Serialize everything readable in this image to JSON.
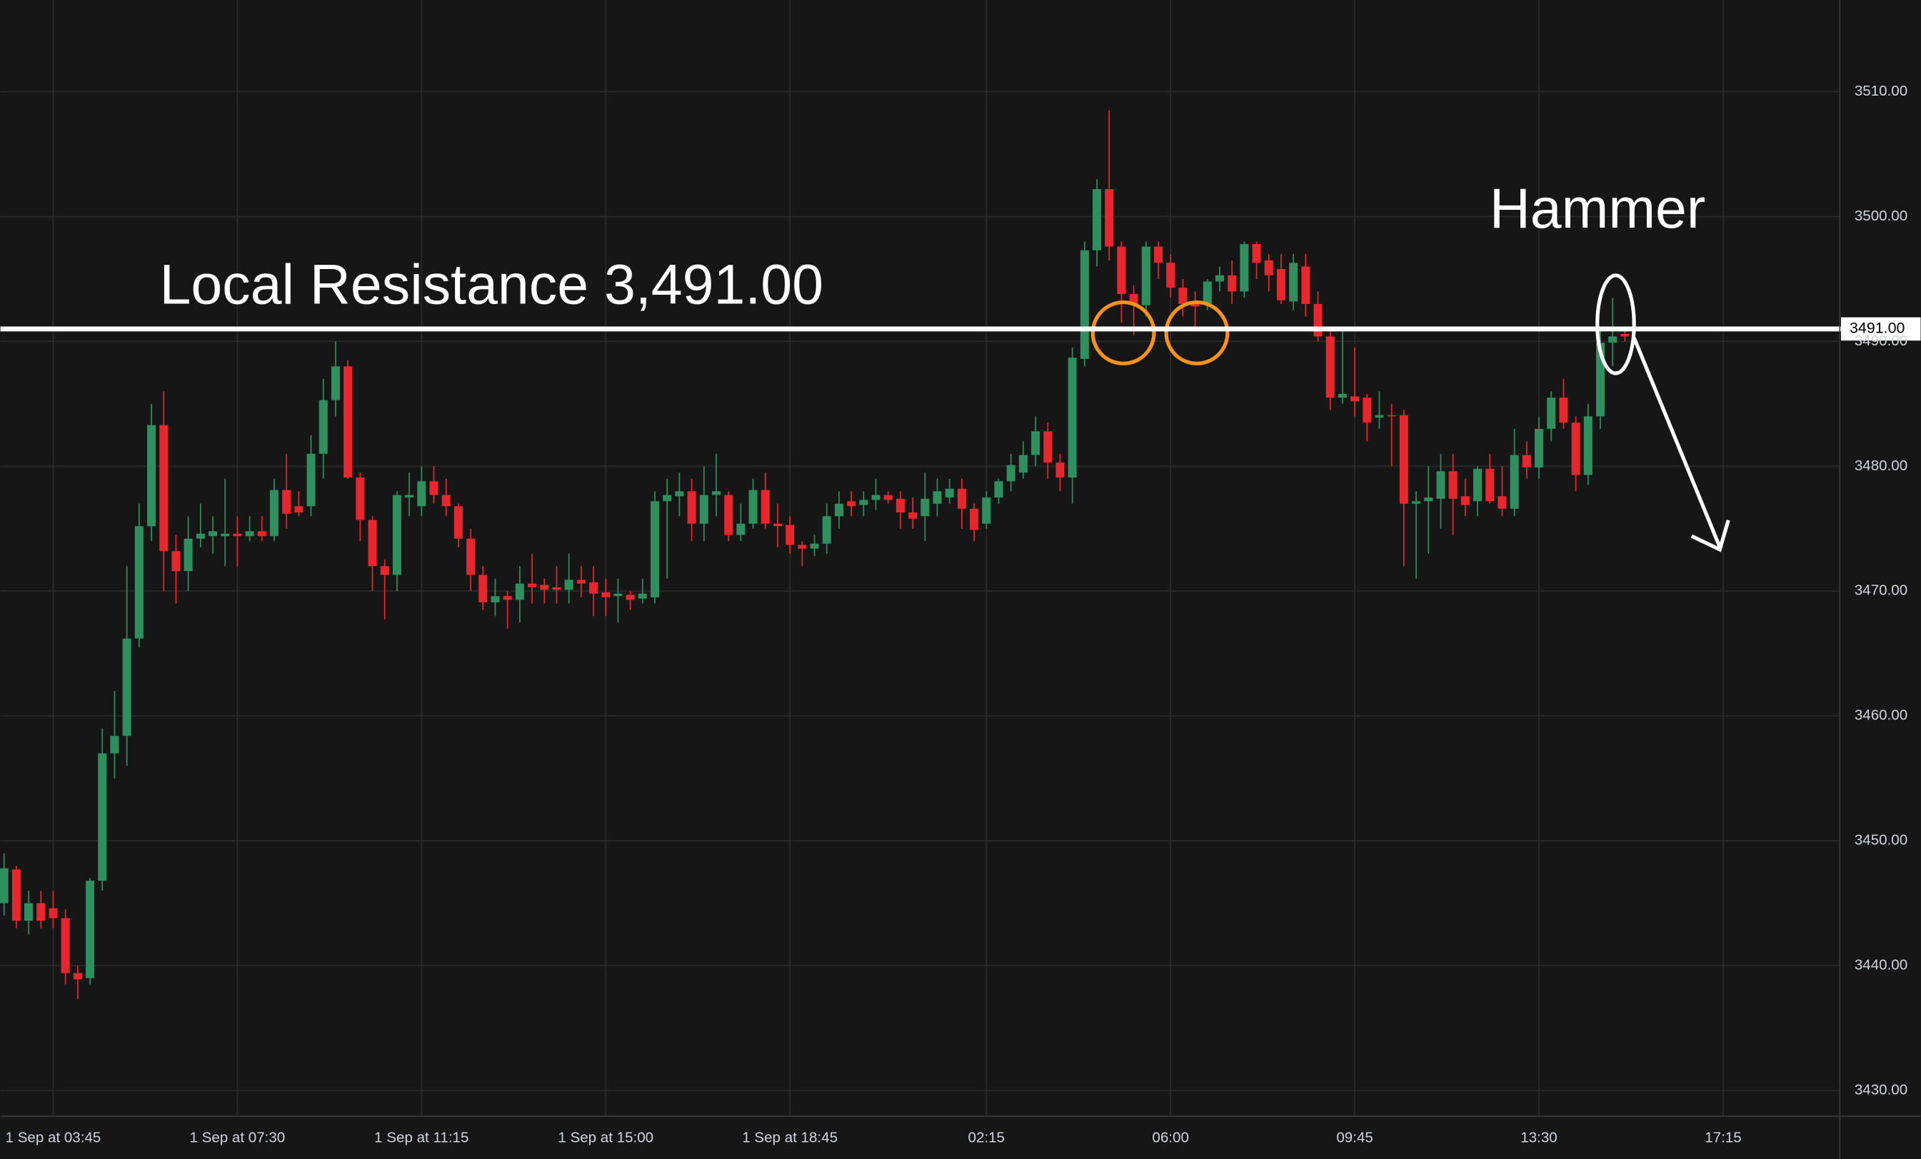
{
  "chart_data": {
    "type": "candlestick",
    "open": [
      3445,
      3447.7,
      3443.6,
      3445,
      3444.6,
      3443.8,
      3439.4,
      3439,
      3446.8,
      3457,
      3458.4,
      3466.2,
      3475.2,
      3483.3,
      3473.2,
      3471.6,
      3474.2,
      3474.4,
      3474.4,
      3474.6,
      3474.4,
      3474.8,
      3474.4,
      3478.1,
      3476.8,
      3476.8,
      3481,
      3485.3,
      3488,
      3479.1,
      3475.7,
      3472,
      3471.3,
      3477.5,
      3476.8,
      3478.8,
      3477.7,
      3476.8,
      3474.2,
      3471.3,
      3469.1,
      3469.6,
      3469.3,
      3470.6,
      3470.5,
      3470.3,
      3470.1,
      3470.9,
      3470.7,
      3469.9,
      3469.6,
      3469.7,
      3469.4,
      3469.5,
      3477.2,
      3477.6,
      3478,
      3475.4,
      3477.7,
      3477.7,
      3474.5,
      3475.4,
      3478.1,
      3475.4,
      3475.3,
      3473.7,
      3473.4,
      3473.8,
      3476,
      3477.2,
      3476.9,
      3477.3,
      3477.7,
      3477.4,
      3476.3,
      3476,
      3477,
      3477.5,
      3478.2,
      3476.6,
      3475.4,
      3477.5,
      3478.8,
      3479.5,
      3480.9,
      3482.8,
      3480.3,
      3479.1,
      3488.6,
      3497.3,
      3502.2,
      3497.6,
      3493.8,
      3492.9,
      3497.6,
      3496.3,
      3494.3,
      3493,
      3493,
      3494.8,
      3495.3,
      3494,
      3497.8,
      3496.5,
      3495.8,
      3493.2,
      3496,
      3493,
      3490.4,
      3485.5,
      3485.6,
      3485.5,
      3483.9,
      3484.1,
      3484.1,
      3477,
      3477.2,
      3477.4,
      3479.6,
      3477.6,
      3477.2,
      3479.8,
      3477.6,
      3476.6,
      3480.9,
      3479.9,
      3483,
      3485.5,
      3483.5,
      3479.3,
      3484,
      3489.9,
      3490.6
    ],
    "high": [
      3449,
      3448,
      3446,
      3446,
      3446,
      3444.5,
      3440,
      3447,
      3459,
      3462,
      3472,
      3477,
      3485,
      3486,
      3474.5,
      3476,
      3477,
      3476,
      3479,
      3476,
      3476,
      3476,
      3479,
      3481,
      3478,
      3482.5,
      3487,
      3490,
      3488.5,
      3479.5,
      3476,
      3472.5,
      3478,
      3479.5,
      3480,
      3480,
      3479,
      3477,
      3475,
      3472,
      3471,
      3470,
      3472,
      3473,
      3471,
      3472,
      3473,
      3472,
      3472,
      3471,
      3471,
      3470,
      3471,
      3478,
      3479,
      3479.5,
      3479,
      3480,
      3481,
      3478,
      3477,
      3479,
      3479.5,
      3477,
      3476,
      3474,
      3474.5,
      3477,
      3478,
      3478,
      3478,
      3479,
      3478,
      3478,
      3477.5,
      3479.5,
      3479,
      3479,
      3479,
      3477,
      3478,
      3479,
      3481,
      3482,
      3484,
      3483.5,
      3481,
      3489.5,
      3498,
      3503,
      3508.5,
      3498,
      3494.5,
      3498,
      3498,
      3497,
      3495,
      3494,
      3495,
      3496,
      3496.5,
      3498,
      3498,
      3497,
      3497,
      3497,
      3497,
      3494,
      3491,
      3491,
      3489.5,
      3485.8,
      3486,
      3485,
      3484.5,
      3478,
      3480,
      3481,
      3481,
      3479,
      3480,
      3481,
      3480,
      3483,
      3482,
      3484,
      3486,
      3487,
      3484,
      3485,
      3491,
      3493.5,
      3491
    ],
    "low": [
      3444,
      3443,
      3442.5,
      3443,
      3443,
      3438.5,
      3437.3,
      3438.5,
      3446,
      3455,
      3456,
      3465.5,
      3474,
      3470,
      3469,
      3470,
      3473.5,
      3473,
      3472,
      3472,
      3474,
      3474,
      3474,
      3475,
      3476,
      3476,
      3479,
      3484,
      3479,
      3474,
      3470,
      3467.7,
      3470,
      3476,
      3476,
      3477,
      3476,
      3473.5,
      3470,
      3468.5,
      3468,
      3467,
      3467.5,
      3469,
      3469,
      3469,
      3469,
      3469.5,
      3468,
      3468,
      3467.5,
      3468.5,
      3469,
      3469,
      3471,
      3476,
      3474,
      3474,
      3476,
      3474,
      3474,
      3475,
      3475,
      3473.5,
      3473,
      3472,
      3472.8,
      3473,
      3475,
      3476,
      3476,
      3476.5,
      3477,
      3475,
      3475,
      3474,
      3476,
      3477,
      3475,
      3474,
      3475,
      3477,
      3478,
      3479,
      3480,
      3479,
      3478,
      3477,
      3488,
      3496,
      3496.5,
      3491.5,
      3490.5,
      3492,
      3495,
      3493.5,
      3492,
      3491,
      3492.5,
      3494,
      3493,
      3493.5,
      3495,
      3494,
      3493,
      3492.5,
      3492,
      3490,
      3484.5,
      3485,
      3484,
      3482,
      3483,
      3480,
      3472,
      3471,
      3473,
      3475,
      3474.5,
      3476,
      3476,
      3477,
      3476,
      3476,
      3479,
      3479,
      3482,
      3483,
      3478,
      3478.5,
      3483,
      3488,
      3490
    ],
    "close": [
      3447.8,
      3443.6,
      3445,
      3443.6,
      3443.8,
      3439.4,
      3438.9,
      3446.8,
      3457,
      3458.4,
      3466.2,
      3475.2,
      3483.3,
      3473.2,
      3471.6,
      3474.2,
      3474.6,
      3474.8,
      3474.6,
      3474.4,
      3474.8,
      3474.4,
      3478.1,
      3476.2,
      3476.3,
      3481,
      3485.3,
      3488,
      3479.1,
      3475.7,
      3472,
      3471.3,
      3477.7,
      3477.7,
      3478.8,
      3477.7,
      3476.8,
      3474.2,
      3471.3,
      3469.1,
      3469.6,
      3469.3,
      3470.6,
      3470.3,
      3470.1,
      3470.1,
      3470.9,
      3470.6,
      3469.8,
      3469.5,
      3469.8,
      3469.3,
      3469.8,
      3477.2,
      3477.7,
      3478,
      3475.4,
      3477.7,
      3478,
      3474.5,
      3475.4,
      3478.1,
      3475.4,
      3475.2,
      3473.7,
      3473.4,
      3473.8,
      3476,
      3477,
      3476.8,
      3477.3,
      3477.7,
      3477.3,
      3476.3,
      3475.8,
      3477.4,
      3478,
      3478.2,
      3476.6,
      3474.9,
      3477.5,
      3478.8,
      3480.1,
      3480.9,
      3482.8,
      3480.3,
      3479.1,
      3488.7,
      3497.3,
      3502.2,
      3497.6,
      3493.8,
      3492.9,
      3497.6,
      3496.3,
      3494.3,
      3493,
      3492.8,
      3494.8,
      3495.3,
      3494,
      3497.8,
      3496.3,
      3495.3,
      3493.3,
      3496.3,
      3493,
      3490.4,
      3485.5,
      3485.8,
      3485.2,
      3483.5,
      3484.1,
      3484,
      3477,
      3477.2,
      3477.5,
      3479.6,
      3477.4,
      3476.9,
      3479.8,
      3477.2,
      3476.6,
      3480.9,
      3479.9,
      3483,
      3485.5,
      3483.5,
      3479.3,
      3484,
      3489.9,
      3490.4,
      3490.4
    ],
    "up_color": "#2f8f5e",
    "down_color": "#e8262e",
    "xlim": [
      -0.3,
      149.5
    ],
    "xticks": [
      {
        "value": 4,
        "label": "1 Sep at 03:45"
      },
      {
        "value": 19,
        "label": "1 Sep at 07:30"
      },
      {
        "value": 34,
        "label": "1 Sep at 11:15"
      },
      {
        "value": 49,
        "label": "1 Sep at 15:00"
      },
      {
        "value": 64,
        "label": "1 Sep at 18:45"
      },
      {
        "value": 80,
        "label": "02:15"
      },
      {
        "value": 95,
        "label": "06:00"
      },
      {
        "value": 110,
        "label": "09:45"
      },
      {
        "value": 125,
        "label": "13:30"
      },
      {
        "value": 140,
        "label": "17:15"
      }
    ],
    "ylim": [
      3427.94,
      3517.35
    ],
    "yticks": [
      {
        "value": 3430,
        "label": "3430.00"
      },
      {
        "value": 3440,
        "label": "3440.00"
      },
      {
        "value": 3450,
        "label": "3450.00"
      },
      {
        "value": 3460,
        "label": "3460.00"
      },
      {
        "value": 3470,
        "label": "3470.00"
      },
      {
        "value": 3480,
        "label": "3480.00"
      },
      {
        "value": 3490,
        "label": "3490.00"
      },
      {
        "value": 3500,
        "label": "3500.00"
      },
      {
        "value": 3510,
        "label": "3510.00"
      }
    ],
    "grid": true,
    "resistance": {
      "value": 3491,
      "label": "3491.00"
    },
    "annotations": [
      "Local Resistance 3,491.00",
      "Hammer"
    ]
  }
}
